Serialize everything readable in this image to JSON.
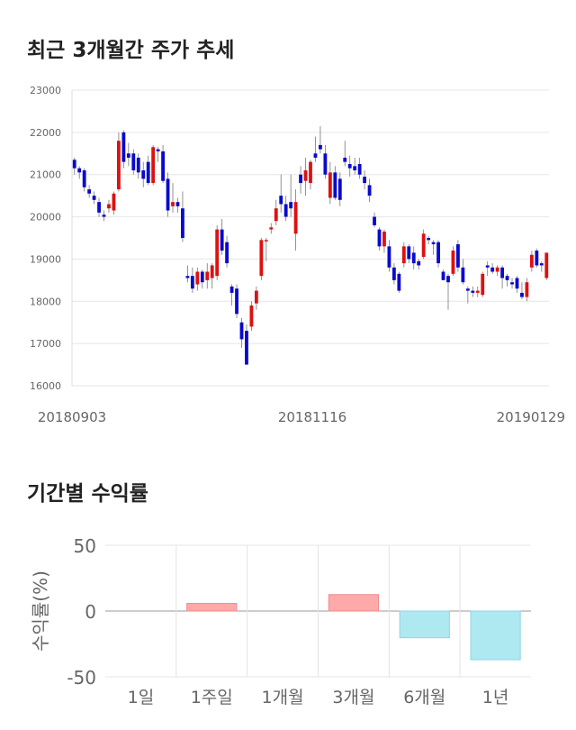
{
  "candle_section": {
    "title": "최근 3개월간 주가 추세"
  },
  "returns_section": {
    "title": "기간별 수익률"
  },
  "chart_data": [
    {
      "type": "candlestick",
      "ylim": [
        16000,
        23000
      ],
      "y_ticks": [
        "23000",
        "22000",
        "21000",
        "20000",
        "19000",
        "18000",
        "17000",
        "16000"
      ],
      "x_tick_labels": [
        "20180903",
        "20181116",
        "20190129"
      ],
      "grid": true,
      "up_color": "#dd1111",
      "down_color": "#0a0acc",
      "candles": [
        [
          21350,
          21400,
          21000,
          21150
        ],
        [
          21150,
          21200,
          20900,
          21050
        ],
        [
          21100,
          21150,
          20600,
          20700
        ],
        [
          20650,
          20750,
          20450,
          20550
        ],
        [
          20500,
          20600,
          20300,
          20400
        ],
        [
          20350,
          20450,
          20000,
          20100
        ],
        [
          20050,
          20150,
          19900,
          20000
        ],
        [
          20200,
          20400,
          20100,
          20300
        ],
        [
          20150,
          20600,
          20050,
          20550
        ],
        [
          20650,
          22000,
          20600,
          21800
        ],
        [
          22000,
          22050,
          21150,
          21300
        ],
        [
          21500,
          21750,
          21200,
          21400
        ],
        [
          21500,
          21600,
          21000,
          21100
        ],
        [
          21400,
          21500,
          20900,
          21050
        ],
        [
          21100,
          21300,
          20700,
          20900
        ],
        [
          21300,
          21450,
          20750,
          20800
        ],
        [
          20800,
          21700,
          20750,
          21650
        ],
        [
          21600,
          21650,
          21300,
          21550
        ],
        [
          21550,
          21700,
          20800,
          20850
        ],
        [
          20900,
          21050,
          20000,
          20150
        ],
        [
          20250,
          20800,
          20100,
          20350
        ],
        [
          20350,
          20450,
          20100,
          20250
        ],
        [
          20200,
          20600,
          19400,
          19500
        ],
        [
          18600,
          18850,
          18450,
          18550
        ],
        [
          18600,
          18800,
          18200,
          18300
        ],
        [
          18400,
          18800,
          18250,
          18700
        ],
        [
          18700,
          18750,
          18300,
          18450
        ],
        [
          18500,
          18900,
          18300,
          18700
        ],
        [
          18550,
          18900,
          18300,
          18850
        ],
        [
          18600,
          19800,
          18500,
          19700
        ],
        [
          19700,
          19950,
          19100,
          19200
        ],
        [
          19400,
          19550,
          18800,
          18900
        ],
        [
          18350,
          18400,
          17900,
          18200
        ],
        [
          18300,
          18400,
          17600,
          17700
        ],
        [
          17500,
          17600,
          16900,
          17100
        ],
        [
          17300,
          17450,
          16500,
          16500
        ],
        [
          17400,
          18000,
          17300,
          17900
        ],
        [
          17950,
          18350,
          17800,
          18250
        ],
        [
          18600,
          19500,
          18500,
          19450
        ],
        [
          19450,
          19500,
          18950,
          19450
        ],
        [
          19700,
          19850,
          19600,
          19750
        ],
        [
          19900,
          20400,
          19800,
          20200
        ],
        [
          20500,
          21000,
          20100,
          20300
        ],
        [
          20300,
          20500,
          19900,
          20000
        ],
        [
          20350,
          21000,
          20000,
          20200
        ],
        [
          19600,
          20650,
          19200,
          20350
        ],
        [
          21000,
          21200,
          20550,
          20800
        ],
        [
          20850,
          21400,
          20500,
          21100
        ],
        [
          20800,
          21350,
          20650,
          21300
        ],
        [
          21500,
          21900,
          21300,
          21400
        ],
        [
          21700,
          22150,
          21500,
          21600
        ],
        [
          21500,
          21700,
          20900,
          21000
        ],
        [
          20450,
          21300,
          20300,
          21050
        ],
        [
          21050,
          21200,
          20400,
          20450
        ],
        [
          20900,
          21050,
          20250,
          20400
        ],
        [
          21400,
          21800,
          21200,
          21300
        ],
        [
          21250,
          21450,
          20950,
          21150
        ],
        [
          21200,
          21400,
          21000,
          21100
        ],
        [
          21250,
          21400,
          20900,
          21000
        ],
        [
          20950,
          21100,
          20650,
          20800
        ],
        [
          20750,
          20900,
          20350,
          20500
        ],
        [
          20000,
          20100,
          19750,
          19800
        ],
        [
          19700,
          19750,
          19200,
          19300
        ],
        [
          19300,
          19700,
          19150,
          19650
        ],
        [
          19300,
          19450,
          18700,
          18800
        ],
        [
          18800,
          18900,
          18400,
          18500
        ],
        [
          18650,
          18700,
          18200,
          18250
        ],
        [
          18900,
          19400,
          18800,
          19300
        ],
        [
          19300,
          19350,
          18900,
          19000
        ],
        [
          19150,
          19300,
          18750,
          18900
        ],
        [
          18950,
          19000,
          18750,
          18850
        ],
        [
          19050,
          19700,
          19000,
          19600
        ],
        [
          19500,
          19550,
          19350,
          19450
        ],
        [
          19400,
          19450,
          19100,
          19350
        ],
        [
          19400,
          19450,
          18800,
          18900
        ],
        [
          18700,
          18750,
          18500,
          18500
        ],
        [
          18600,
          18650,
          17800,
          18450
        ],
        [
          18650,
          19300,
          18600,
          19200
        ],
        [
          19350,
          19450,
          18700,
          18800
        ],
        [
          18800,
          19000,
          18400,
          18450
        ],
        [
          18300,
          18350,
          17950,
          18250
        ],
        [
          18250,
          18350,
          18100,
          18200
        ],
        [
          18200,
          18350,
          18100,
          18250
        ],
        [
          18150,
          18700,
          18100,
          18650
        ],
        [
          18850,
          18950,
          18600,
          18800
        ],
        [
          18800,
          18900,
          18650,
          18700
        ],
        [
          18700,
          18850,
          18600,
          18800
        ],
        [
          18800,
          18850,
          18300,
          18550
        ],
        [
          18600,
          18650,
          18350,
          18500
        ],
        [
          18450,
          18550,
          18300,
          18400
        ],
        [
          18550,
          18600,
          18200,
          18300
        ],
        [
          18200,
          18450,
          18050,
          18100
        ],
        [
          18100,
          18550,
          18000,
          18450
        ],
        [
          18800,
          19200,
          18700,
          19100
        ],
        [
          19200,
          19250,
          18800,
          18850
        ],
        [
          18900,
          18950,
          18700,
          18850
        ],
        [
          18550,
          19100,
          18500,
          19150
        ]
      ]
    },
    {
      "type": "bar",
      "categories": [
        "1일",
        "1주일",
        "1개월",
        "3개월",
        "6개월",
        "1년"
      ],
      "values": [
        0,
        5.8,
        0,
        12.5,
        -20.3,
        -37.0
      ],
      "ylabel": "수익률(%)",
      "y_ticks": [
        "50",
        "0",
        "-50"
      ],
      "ylim": [
        -50,
        50
      ],
      "positive_color": "#ffaaaa",
      "negative_color": "#aee9f2",
      "grid": true
    }
  ]
}
